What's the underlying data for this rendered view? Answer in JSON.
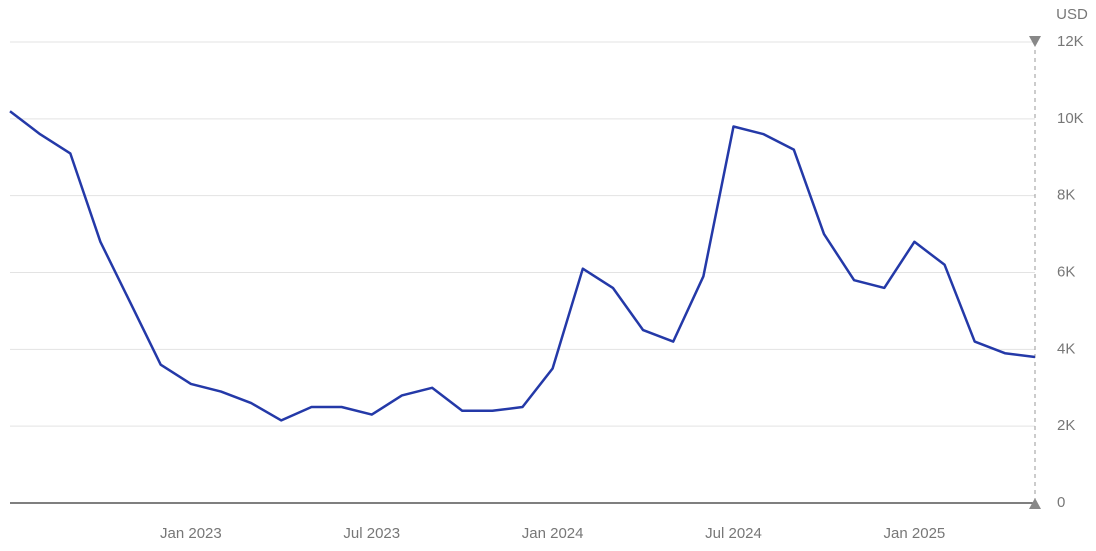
{
  "chart_data": {
    "type": "line",
    "y_unit": "USD",
    "x": [
      "2022-07",
      "2022-08",
      "2022-09",
      "2022-10",
      "2022-11",
      "2022-12",
      "2023-01",
      "2023-02",
      "2023-03",
      "2023-04",
      "2023-05",
      "2023-06",
      "2023-07",
      "2023-08",
      "2023-09",
      "2023-10",
      "2023-11",
      "2023-12",
      "2024-01",
      "2024-02",
      "2024-03",
      "2024-04",
      "2024-05",
      "2024-06",
      "2024-07",
      "2024-08",
      "2024-09",
      "2024-10",
      "2024-11",
      "2024-12",
      "2025-01",
      "2025-02",
      "2025-03",
      "2025-04",
      "2025-05"
    ],
    "series": [
      {
        "color": "#2439a8",
        "values": [
          10200,
          9600,
          9100,
          6800,
          5200,
          3600,
          3100,
          2900,
          2600,
          2150,
          2500,
          2500,
          2300,
          2800,
          3000,
          2400,
          2400,
          2500,
          3500,
          6100,
          5600,
          4500,
          4200,
          5900,
          9800,
          9600,
          9200,
          7000,
          5800,
          5600,
          6800,
          6200,
          4200,
          3900,
          3800
        ]
      }
    ],
    "xlim": [
      "2022-07",
      "2025-05"
    ],
    "xticks": [
      {
        "value": "2023-01",
        "label": "Jan 2023"
      },
      {
        "value": "2023-07",
        "label": "Jul 2023"
      },
      {
        "value": "2024-01",
        "label": "Jan 2024"
      },
      {
        "value": "2024-07",
        "label": "Jul 2024"
      },
      {
        "value": "2025-01",
        "label": "Jan 2025"
      }
    ],
    "ylim": [
      0,
      12000
    ],
    "yticks": [
      0,
      {
        "value": 2000,
        "label": "2K"
      },
      {
        "value": 4000,
        "label": "4K"
      },
      {
        "value": 6000,
        "label": "6K"
      },
      {
        "value": 8000,
        "label": "8K"
      },
      {
        "value": 10000,
        "label": "10K"
      },
      {
        "value": 12000,
        "label": "12K"
      }
    ],
    "grid": true
  }
}
